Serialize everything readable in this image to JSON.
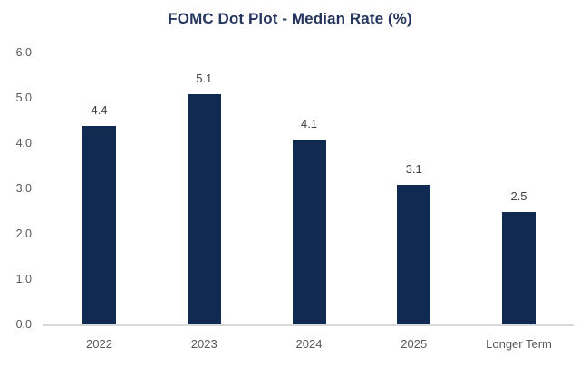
{
  "chart_data": {
    "type": "bar",
    "title": "FOMC Dot Plot - Median Rate (%)",
    "categories": [
      "2022",
      "2023",
      "2024",
      "2025",
      "Longer Term"
    ],
    "values": [
      4.4,
      5.1,
      4.1,
      3.1,
      2.5
    ],
    "data_labels": [
      "4.4",
      "5.1",
      "4.1",
      "3.1",
      "2.5"
    ],
    "xlabel": "",
    "ylabel": "",
    "ylim": [
      0,
      6
    ],
    "ytick_interval": 1.0,
    "yticks": [
      "0.0",
      "1.0",
      "2.0",
      "3.0",
      "4.0",
      "5.0",
      "6.0"
    ],
    "grid": false,
    "legend_position": "none",
    "colors": {
      "bar": "#112A52",
      "title": "#24355E",
      "axis_labels": "#595959",
      "data_labels": "#404040",
      "axis_line": "#D9D9D9",
      "background": "#FFFFFF"
    }
  }
}
